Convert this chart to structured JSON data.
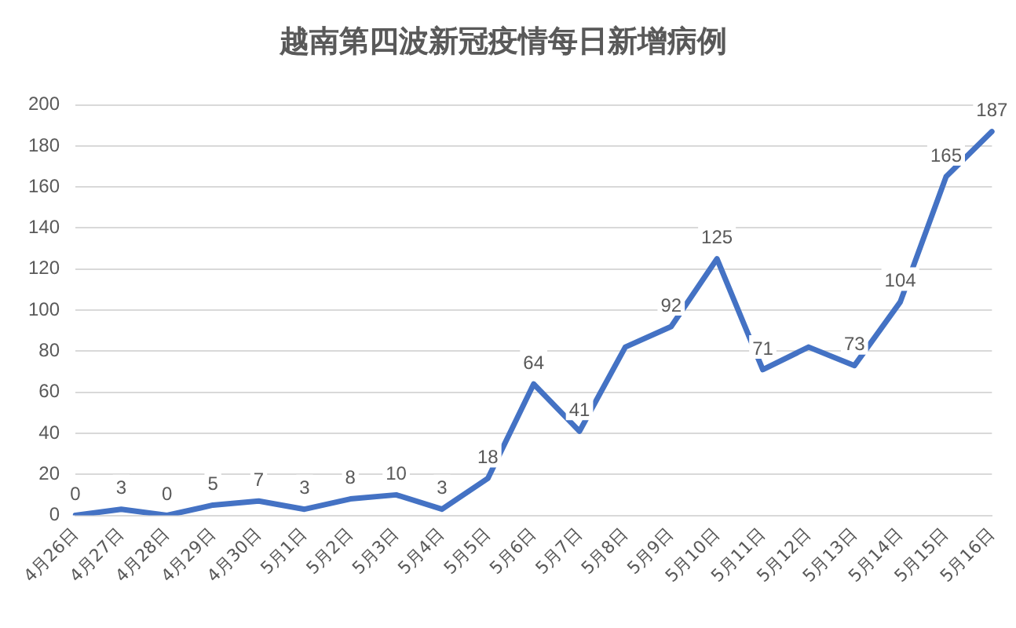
{
  "chart_data": {
    "type": "line",
    "title": "越南第四波新冠疫情每日新增病例",
    "categories": [
      "4月26日",
      "4月27日",
      "4月28日",
      "4月29日",
      "4月30日",
      "5月1日",
      "5月2日",
      "5月3日",
      "5月4日",
      "5月5日",
      "5月6日",
      "5月7日",
      "5月8日",
      "5月9日",
      "5月10日",
      "5月11日",
      "5月12日",
      "5月13日",
      "5月14日",
      "5月15日",
      "5月16日"
    ],
    "series": [
      {
        "color": "#4472c4",
        "values": [
          0,
          3,
          0,
          5,
          7,
          3,
          8,
          10,
          3,
          18,
          64,
          41,
          82,
          92,
          125,
          71,
          82,
          73,
          104,
          165,
          187
        ],
        "value_labels": [
          "0",
          "3",
          "0",
          "5",
          "7",
          "3",
          "8",
          "10",
          "3",
          "18",
          "64",
          "41",
          null,
          "92",
          "125",
          "71",
          null,
          "73",
          "104",
          "165",
          "187"
        ]
      }
    ],
    "ylim": [
      0,
      200
    ],
    "yticks": [
      0,
      20,
      40,
      60,
      80,
      100,
      120,
      140,
      160,
      180,
      200
    ],
    "grid": "y",
    "legend": false,
    "marker": "none",
    "line_style": "solid"
  }
}
